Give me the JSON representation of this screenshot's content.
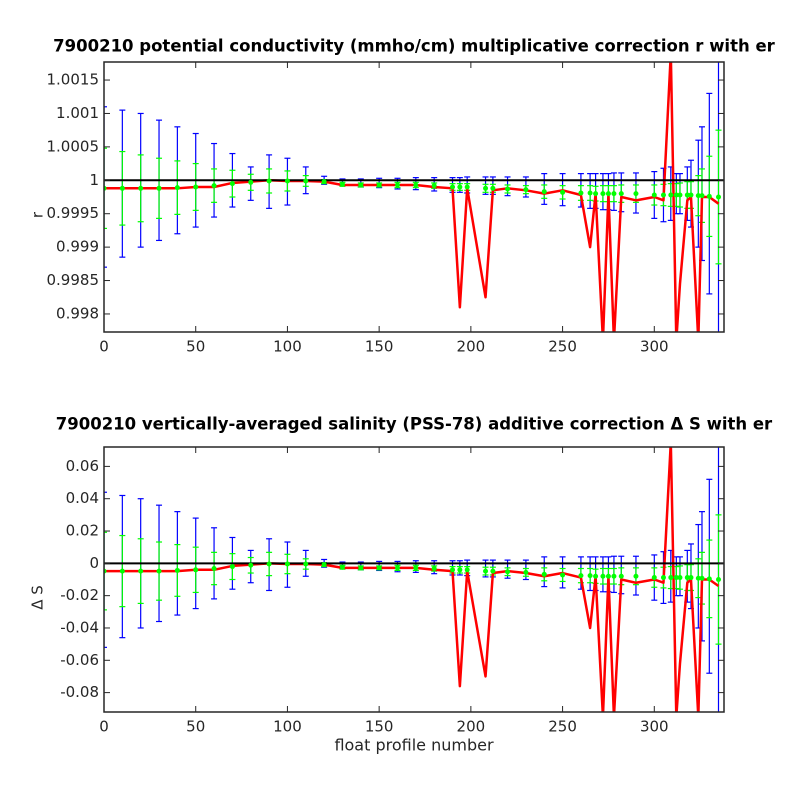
{
  "chart_data": [
    {
      "type": "errorbar",
      "title": "7900210 potential conductivity (mmho/cm) multiplicative correction r with er",
      "ylabel": "r",
      "x": [
        0,
        10,
        20,
        30,
        40,
        50,
        60,
        70,
        80,
        90,
        100,
        110,
        120,
        130,
        140,
        150,
        160,
        170,
        180,
        190,
        194,
        198,
        208,
        212,
        220,
        230,
        240,
        250,
        260,
        265,
        268,
        272,
        275,
        278,
        282,
        290,
        300,
        305,
        309,
        312,
        314,
        318,
        320,
        324,
        326,
        330,
        335
      ],
      "xlim": [
        0,
        338
      ],
      "xticks": [
        0,
        50,
        100,
        150,
        200,
        250,
        300
      ],
      "ylim": [
        0.99773,
        1.00177
      ],
      "yticks": [
        0.998,
        0.9985,
        0.999,
        0.9995,
        1,
        1.0005,
        1.001,
        1.0015
      ],
      "hline": 1,
      "hline_color": "#000000",
      "series": [
        {
          "color": "#0000ff",
          "values": [
            0.9999,
            0.99995,
            1,
            1,
            1,
            1,
            1,
            1,
            0.99995,
            0.99998,
            0.99998,
            1,
            1,
            0.99997,
            0.99996,
            0.99996,
            0.99995,
            0.99995,
            0.99994,
            0.99993,
            0.99993,
            0.99993,
            0.99992,
            0.99992,
            0.99991,
            0.9999,
            0.99987,
            0.99986,
            0.99985,
            0.99984,
            0.99984,
            0.99983,
            0.99983,
            0.99983,
            0.99982,
            0.99981,
            0.99978,
            0.99978,
            0.9998,
            0.9998,
            0.9998,
            0.9998,
            0.9998,
            0.9998,
            0.9998,
            0.9998,
            0.9998
          ],
          "errors": [
            0.0012,
            0.0011,
            0.001,
            0.0009,
            0.0008,
            0.0007,
            0.00055,
            0.0004,
            0.00025,
            0.0004,
            0.00035,
            0.0002,
            6e-05,
            5e-05,
            6e-05,
            7e-05,
            8e-05,
            9e-05,
            0.0001,
            0.00011,
            0.00011,
            0.00012,
            0.00013,
            0.00013,
            0.00014,
            0.00015,
            0.00023,
            0.00024,
            0.00025,
            0.00026,
            0.00026,
            0.00027,
            0.00027,
            0.00028,
            0.00029,
            0.0003,
            0.00035,
            0.0004,
            0.0004,
            0.0003,
            0.0003,
            0.0004,
            0.0005,
            0.0008,
            0.001,
            0.0015,
            0.0025
          ]
        },
        {
          "color": "#00ff00",
          "values": [
            0.99988,
            0.99988,
            0.99988,
            0.99988,
            0.99989,
            0.9999,
            0.99992,
            0.99995,
            0.99997,
            0.99999,
            0.99999,
            0.99999,
            0.99998,
            0.99994,
            0.99993,
            0.99993,
            0.99993,
            0.99993,
            0.99992,
            0.9999,
            0.9999,
            0.9999,
            0.99988,
            0.99988,
            0.99987,
            0.99986,
            0.99983,
            0.99982,
            0.99981,
            0.99981,
            0.9998,
            0.9998,
            0.9998,
            0.9998,
            0.9998,
            0.9998,
            0.99978,
            0.99978,
            0.99978,
            0.99978,
            0.99978,
            0.99978,
            0.99978,
            0.99977,
            0.99977,
            0.99976,
            0.99975
          ],
          "errors": [
            0.0006,
            0.00055,
            0.0005,
            0.00045,
            0.0004,
            0.00035,
            0.00025,
            0.0002,
            0.00012,
            0.00018,
            0.00015,
            8e-05,
            3e-05,
            3e-05,
            3e-05,
            3e-05,
            4e-05,
            4e-05,
            4e-05,
            5e-05,
            5e-05,
            5e-05,
            6e-05,
            6e-05,
            6e-05,
            6e-05,
            0.0001,
            0.0001,
            0.00011,
            0.00011,
            0.00011,
            0.00012,
            0.00012,
            0.00012,
            0.00013,
            0.00013,
            0.00015,
            0.00016,
            0.00017,
            0.00017,
            0.00018,
            0.0002,
            0.0002,
            0.0003,
            0.0004,
            0.0006,
            0.001
          ]
        },
        {
          "color": "#ff0000",
          "values": [
            0.99988,
            0.99988,
            0.99988,
            0.99988,
            0.99988,
            0.9999,
            0.9999,
            0.99996,
            0.99998,
            1,
            0.99999,
            0.99999,
            0.99998,
            0.99993,
            0.99993,
            0.99993,
            0.99993,
            0.99993,
            0.9999,
            0.99988,
            0.9981,
            0.99988,
            0.99825,
            0.99985,
            0.99988,
            0.99985,
            0.9998,
            0.99985,
            0.99978,
            0.999,
            0.9998,
            0.9976,
            0.9998,
            0.9976,
            0.99975,
            0.9997,
            0.99975,
            0.9997,
            1.0019,
            0.9976,
            0.99845,
            0.9997,
            0.99975,
            0.9976,
            0.99975,
            0.99975,
            0.99965
          ]
        }
      ]
    },
    {
      "type": "errorbar",
      "title": "7900210 vertically-averaged salinity (PSS-78) additive correction Δ S with er",
      "ylabel": "Δ S",
      "xlabel": "float profile number",
      "x": [
        0,
        10,
        20,
        30,
        40,
        50,
        60,
        70,
        80,
        90,
        100,
        110,
        120,
        130,
        140,
        150,
        160,
        170,
        180,
        190,
        194,
        198,
        208,
        212,
        220,
        230,
        240,
        250,
        260,
        265,
        268,
        272,
        275,
        278,
        282,
        290,
        300,
        305,
        309,
        312,
        314,
        318,
        320,
        324,
        326,
        330,
        335
      ],
      "xlim": [
        0,
        338
      ],
      "xticks": [
        0,
        50,
        100,
        150,
        200,
        250,
        300
      ],
      "ylim": [
        -0.092,
        0.072
      ],
      "yticks": [
        -0.08,
        -0.06,
        -0.04,
        -0.02,
        0,
        0.02,
        0.04,
        0.06
      ],
      "hline": 0,
      "hline_color": "#000000",
      "series": [
        {
          "color": "#0000ff",
          "values": [
            -0.004,
            -0.002,
            0,
            0,
            0,
            0,
            0,
            0,
            -0.002,
            -0.0008,
            -0.0008,
            0,
            0,
            -0.0012,
            -0.0016,
            -0.0016,
            -0.002,
            -0.002,
            -0.0024,
            -0.0028,
            -0.0028,
            -0.0028,
            -0.0032,
            -0.0032,
            -0.0036,
            -0.004,
            -0.0052,
            -0.0056,
            -0.006,
            -0.0064,
            -0.0064,
            -0.0068,
            -0.0068,
            -0.0068,
            -0.0072,
            -0.0076,
            -0.0088,
            -0.0088,
            -0.008,
            -0.008,
            -0.008,
            -0.008,
            -0.008,
            -0.008,
            -0.008,
            -0.008,
            -0.008
          ],
          "errors": [
            0.048,
            0.044,
            0.04,
            0.036,
            0.032,
            0.028,
            0.022,
            0.016,
            0.01,
            0.016,
            0.014,
            0.008,
            0.0024,
            0.002,
            0.0024,
            0.0028,
            0.0032,
            0.0036,
            0.004,
            0.0044,
            0.0044,
            0.0048,
            0.0052,
            0.0052,
            0.0056,
            0.006,
            0.0092,
            0.0096,
            0.01,
            0.0104,
            0.0104,
            0.0108,
            0.0108,
            0.0112,
            0.0116,
            0.012,
            0.014,
            0.016,
            0.016,
            0.012,
            0.012,
            0.016,
            0.02,
            0.032,
            0.04,
            0.06,
            0.1
          ]
        },
        {
          "color": "#00ff00",
          "values": [
            -0.0048,
            -0.0048,
            -0.0048,
            -0.0048,
            -0.0044,
            -0.004,
            -0.0032,
            -0.002,
            -0.0012,
            -0.0004,
            -0.0004,
            -0.0004,
            -0.0008,
            -0.0024,
            -0.0028,
            -0.0028,
            -0.0028,
            -0.0028,
            -0.0032,
            -0.004,
            -0.004,
            -0.004,
            -0.0048,
            -0.0048,
            -0.0052,
            -0.0056,
            -0.0068,
            -0.0072,
            -0.0076,
            -0.0076,
            -0.008,
            -0.008,
            -0.008,
            -0.008,
            -0.008,
            -0.008,
            -0.0088,
            -0.0088,
            -0.0088,
            -0.0088,
            -0.0088,
            -0.0088,
            -0.0088,
            -0.0092,
            -0.0092,
            -0.0096,
            -0.01
          ],
          "errors": [
            0.024,
            0.022,
            0.02,
            0.018,
            0.016,
            0.014,
            0.01,
            0.008,
            0.0048,
            0.0072,
            0.006,
            0.0032,
            0.0012,
            0.0012,
            0.0012,
            0.0012,
            0.0016,
            0.0016,
            0.0016,
            0.002,
            0.002,
            0.002,
            0.0024,
            0.0024,
            0.0024,
            0.0024,
            0.004,
            0.004,
            0.0044,
            0.0044,
            0.0044,
            0.0048,
            0.0048,
            0.0048,
            0.0052,
            0.0052,
            0.006,
            0.0064,
            0.0068,
            0.0068,
            0.0072,
            0.008,
            0.008,
            0.012,
            0.016,
            0.024,
            0.04
          ]
        },
        {
          "color": "#ff0000",
          "values": [
            -0.0048,
            -0.0048,
            -0.0048,
            -0.0048,
            -0.0048,
            -0.004,
            -0.004,
            -0.0016,
            -0.0008,
            0,
            -0.0004,
            -0.0004,
            -0.0008,
            -0.0028,
            -0.0028,
            -0.0028,
            -0.0028,
            -0.0028,
            -0.004,
            -0.0048,
            -0.076,
            -0.0048,
            -0.07,
            -0.006,
            -0.0048,
            -0.006,
            -0.008,
            -0.006,
            -0.0088,
            -0.04,
            -0.008,
            -0.095,
            -0.008,
            -0.095,
            -0.01,
            -0.012,
            -0.01,
            -0.012,
            0.075,
            -0.095,
            -0.062,
            -0.012,
            -0.01,
            -0.095,
            -0.01,
            -0.01,
            -0.014
          ]
        }
      ]
    }
  ]
}
